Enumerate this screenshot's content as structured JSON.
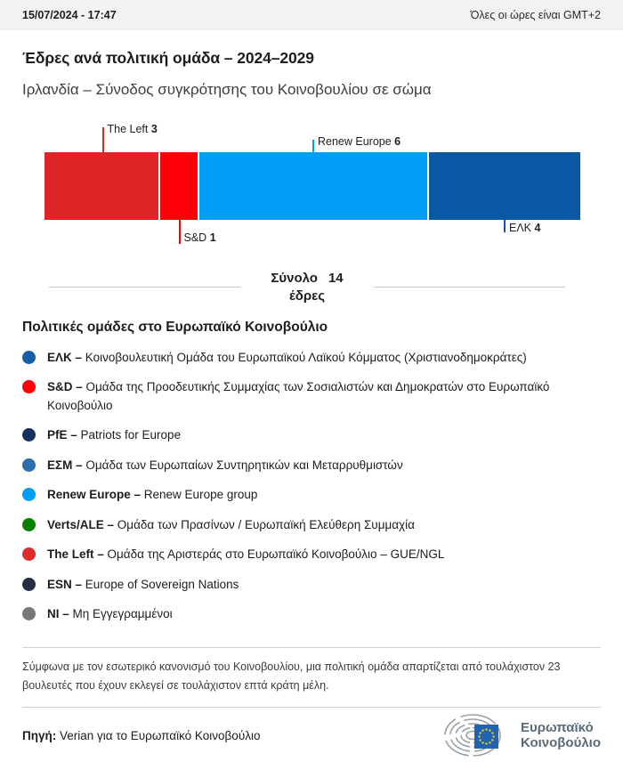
{
  "topbar": {
    "datetime": "15/07/2024 - 17:47",
    "timezone_note": "Όλες οι ώρες είναι GMT+2"
  },
  "title": "Έδρες ανά πολιτική ομάδα – 2024–2029",
  "subtitle": "Ιρλανδία – Σύνοδος συγκρότησης του Κοινοβουλίου σε σώμα",
  "chart_data": {
    "type": "bar",
    "orientation": "horizontal-stacked",
    "title": "Έδρες ανά πολιτική ομάδα – 2024–2029",
    "subtitle": "Ιρλανδία – Σύνοδος συγκρότησης του Κοινοβουλίου σε σώμα",
    "total_seats": 14,
    "total_label": "Σύνολο",
    "total_unit": "έδρες",
    "segments": [
      {
        "group": "The Left",
        "seats": 3,
        "color": "#e02529",
        "side": "above",
        "tick": "tall"
      },
      {
        "group": "S&D",
        "seats": 1,
        "color": "#fb0007",
        "side": "below",
        "tick": "tall"
      },
      {
        "group": "Renew Europe",
        "seats": 6,
        "color": "#009ff5",
        "side": "above",
        "tick": "short"
      },
      {
        "group": "ΕΛΚ",
        "seats": 4,
        "color": "#0a58a4",
        "side": "below",
        "tick": "short"
      }
    ]
  },
  "legend": {
    "heading": "Πολιτικές ομάδες στο Ευρωπαϊκό Κοινοβούλιο",
    "dash": "–",
    "items": [
      {
        "abbr": "ΕΛΚ",
        "desc": "Κοινοβουλευτική Ομάδα του Ευρωπαϊκού Λαϊκού Κόμματος (Χριστιανοδημοκράτες)",
        "color": "#1a5fa6"
      },
      {
        "abbr": "S&D",
        "desc": "Ομάδα της Προοδευτικής Συμμαχίας των Σοσιαλιστών και Δημοκρατών στο Ευρωπαϊκό Κοινοβούλιο",
        "color": "#fe0000"
      },
      {
        "abbr": "PfE",
        "desc": "Patriots for Europe",
        "color": "#16325c"
      },
      {
        "abbr": "ΕΣΜ",
        "desc": "Ομάδα των Ευρωπαίων Συντηρητικών και Μεταρρυθμιστών",
        "color": "#2e6eae"
      },
      {
        "abbr": "Renew Europe",
        "desc": "Renew Europe group",
        "color": "#009ff5"
      },
      {
        "abbr": "Verts/ALE",
        "desc": "Ομάδα των Πρασίνων / Ευρωπαϊκή Ελεύθερη Συμμαχία",
        "color": "#0a8000"
      },
      {
        "abbr": "The Left",
        "desc": "Ομάδα της Αριστεράς στο Ευρωπαϊκό Κοινοβούλιο – GUE/NGL",
        "color": "#dd2c2c"
      },
      {
        "abbr": "ESN",
        "desc": "Europe of Sovereign Nations",
        "color": "#233044"
      },
      {
        "abbr": "NI",
        "desc": "Μη Εγγεγραμμένοι",
        "color": "#787878"
      }
    ]
  },
  "footnote": "Σύμφωνα με τον εσωτερικό κανονισμό του Κοινοβουλίου, μια πολιτική ομάδα απαρτίζεται από τουλάχιστον 23 βουλευτές που έχουν εκλεγεί σε τουλάχιστον επτά κράτη μέλη.",
  "source": {
    "label": "Πηγή:",
    "text": "Verian για το Ευρωπαϊκό Κοινοβούλιο"
  },
  "logo": {
    "line1": "Ευρωπαϊκό",
    "line2": "Κοινοβούλιο",
    "flag_color": "#2163b0",
    "star_color": "#ffd617",
    "arc_color": "#98a0a6"
  }
}
